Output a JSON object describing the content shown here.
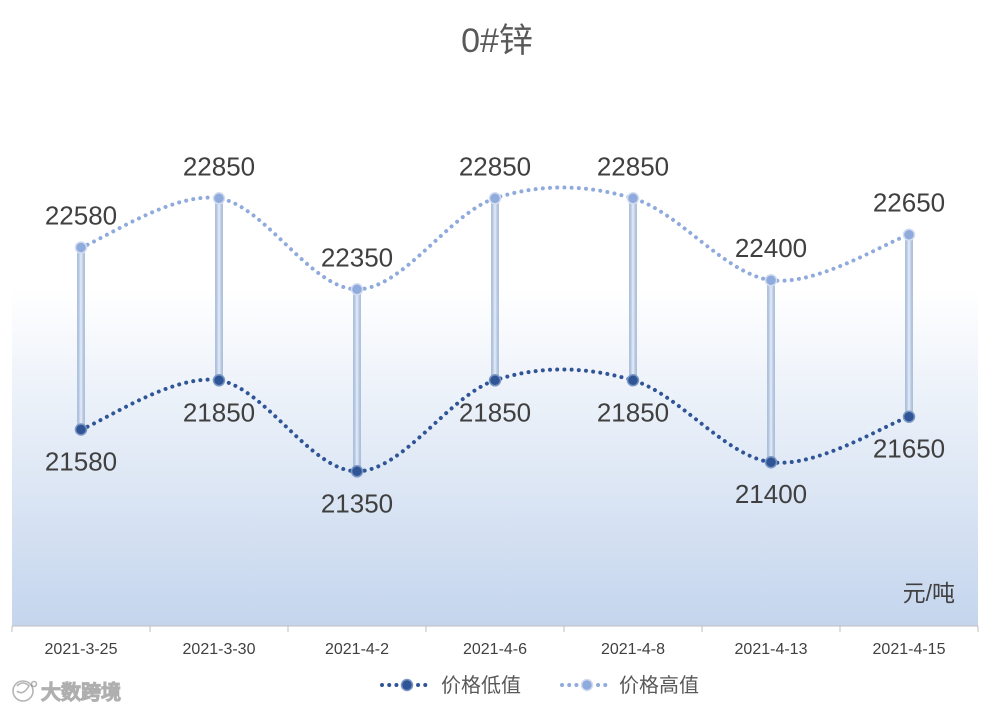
{
  "chart_data": {
    "type": "line",
    "title": "0#锌",
    "unit_label": "元/吨",
    "categories": [
      "2021-3-25",
      "2021-3-30",
      "2021-4-2",
      "2021-4-6",
      "2021-4-8",
      "2021-4-13",
      "2021-4-15"
    ],
    "series": [
      {
        "name": "价格低值",
        "values": [
          21580,
          21850,
          21350,
          21850,
          21850,
          21400,
          21650
        ],
        "color": "#2f5597"
      },
      {
        "name": "价格高值",
        "values": [
          22580,
          22850,
          22350,
          22850,
          22850,
          22400,
          22650
        ],
        "color": "#8faadc"
      }
    ],
    "ylim": [
      20500,
      23500
    ],
    "grid": false,
    "legend": "bottom",
    "smooth": true,
    "high_low_lines": true
  },
  "watermark": {
    "text": "大数跨境"
  }
}
